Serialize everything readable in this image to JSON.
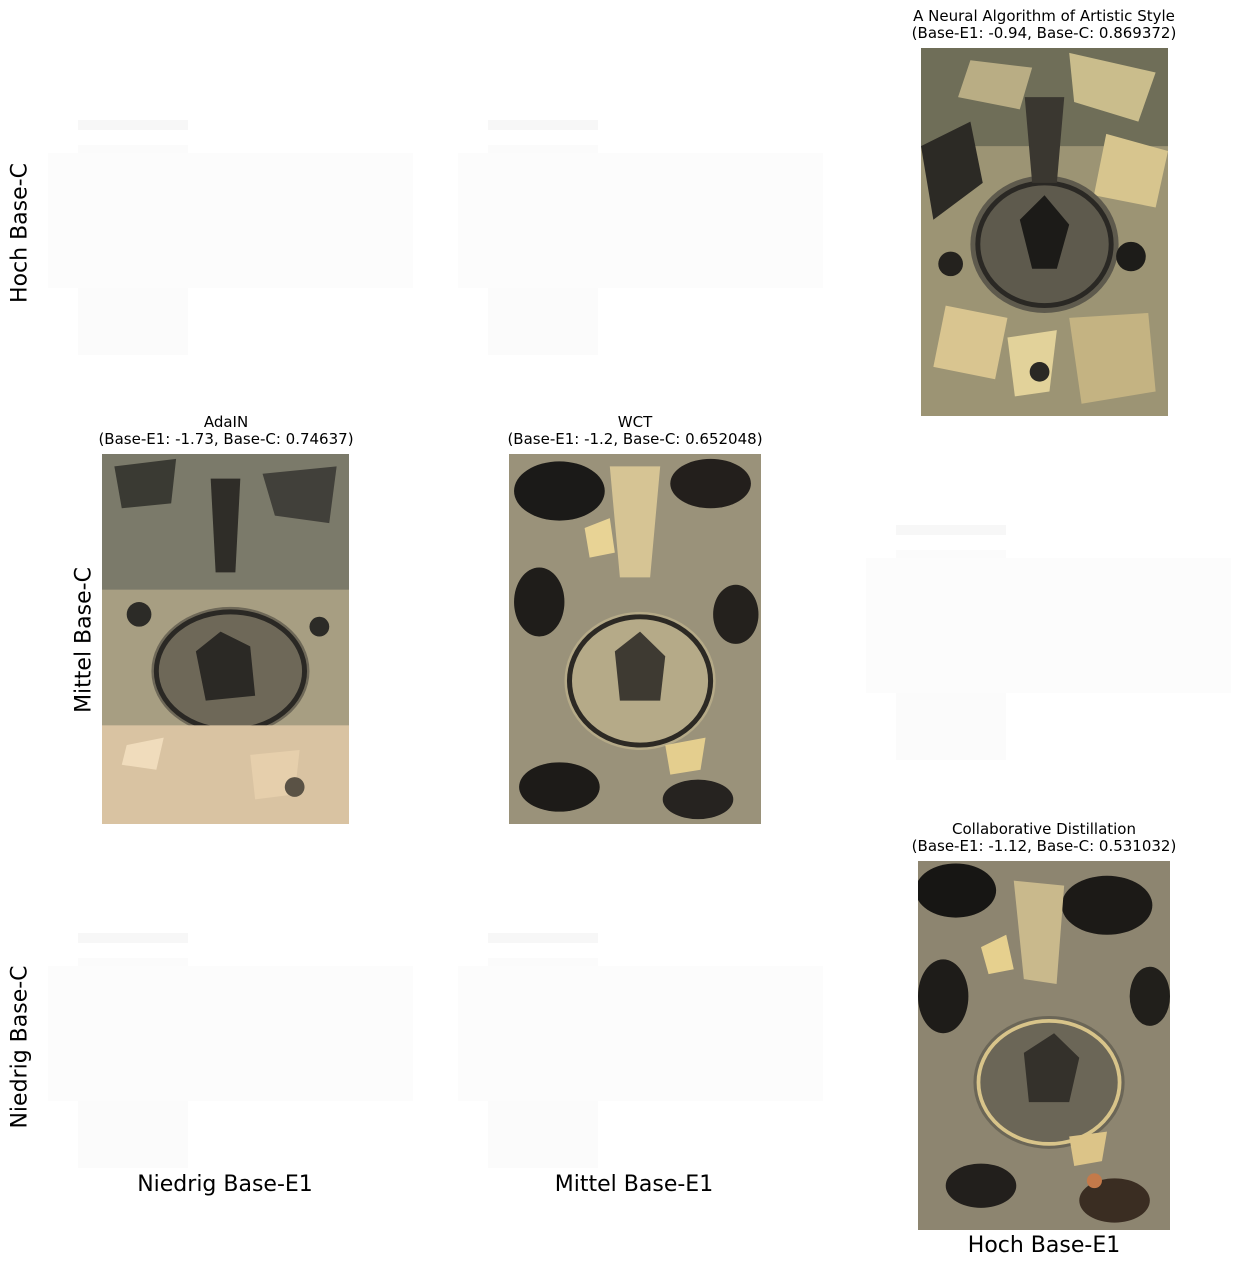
{
  "row_labels": {
    "high": "Hoch Base-C",
    "mid": "Mittel Base-C",
    "low": "Niedrig Base-C"
  },
  "col_labels": {
    "low": "Niedrig Base-E1",
    "mid": "Mittel Base-E1",
    "high": "Hoch Base-E1"
  },
  "panels": {
    "gatys": {
      "title": "A Neural Algorithm of Artistic Style",
      "metrics": "(Base-E1: -0.94, Base-C: 0.869372)"
    },
    "adain": {
      "title": "AdaIN",
      "metrics": "(Base-E1: -1.73, Base-C: 0.74637)"
    },
    "wct": {
      "title": "WCT",
      "metrics": "(Base-E1: -1.2, Base-C: 0.652048)"
    },
    "collab": {
      "title": "Collaborative Distillation",
      "metrics": "(Base-E1: -1.12, Base-C: 0.531032)"
    }
  },
  "colors": {
    "light_tan": "#c9b78c",
    "dark": "#1e1c1a",
    "grey": "#8a8470",
    "gold": "#e8cf86"
  }
}
